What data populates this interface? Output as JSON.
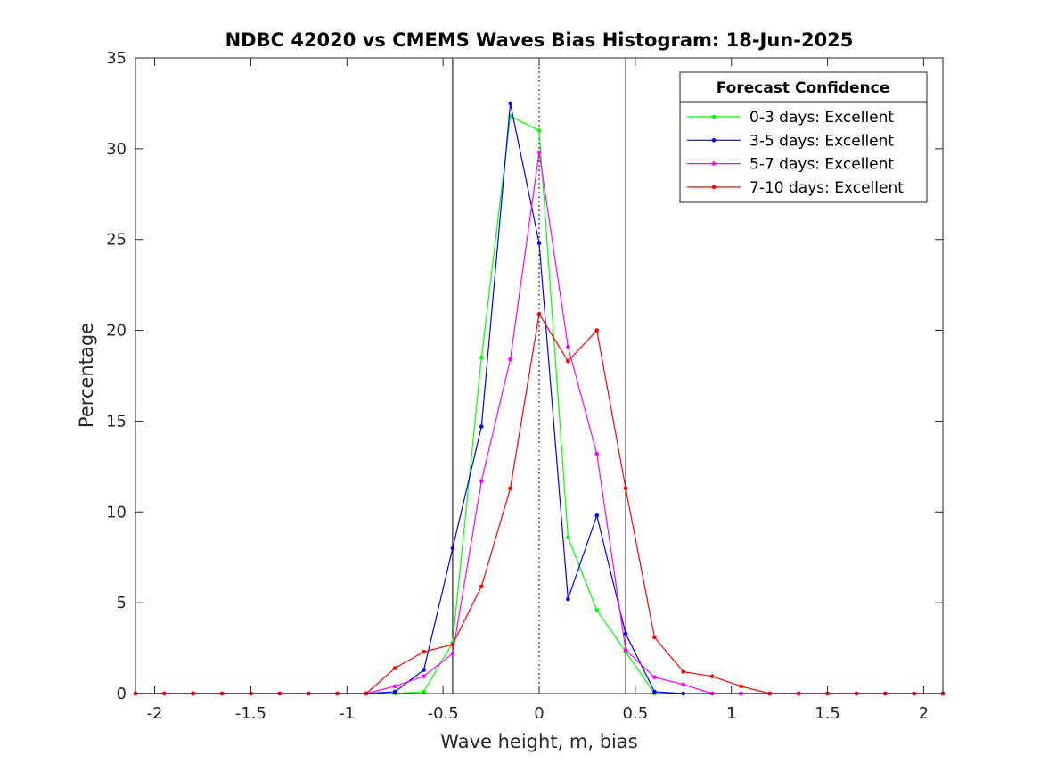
{
  "chart_data": {
    "type": "line",
    "title": "NDBC 42020 vs CMEMS Waves Bias Histogram: 18-Jun-2025",
    "xlabel": "Wave height, m, bias",
    "ylabel": "Percentage",
    "xlim": [
      -2.1,
      2.1
    ],
    "ylim": [
      0,
      35
    ],
    "xticks": [
      -2,
      -1.5,
      -1,
      -0.5,
      0,
      0.5,
      1,
      1.5,
      2
    ],
    "xtick_labels": [
      "-2",
      "-1.5",
      "-1",
      "-0.5",
      "0",
      "0.5",
      "1",
      "1.5",
      "2"
    ],
    "yticks": [
      0,
      5,
      10,
      15,
      20,
      25,
      30,
      35
    ],
    "ytick_labels": [
      "0",
      "5",
      "10",
      "15",
      "20",
      "25",
      "30",
      "35"
    ],
    "grid": false,
    "vertical_lines": [
      {
        "x": -0.45,
        "style": "solid",
        "color": "#000000"
      },
      {
        "x": 0,
        "style": "dotted",
        "color": "#000000"
      },
      {
        "x": 0.45,
        "style": "solid",
        "color": "#000000"
      }
    ],
    "x": [
      -2.1,
      -1.95,
      -1.8,
      -1.65,
      -1.5,
      -1.35,
      -1.2,
      -1.05,
      -0.9,
      -0.75,
      -0.6,
      -0.45,
      -0.3,
      -0.15,
      0,
      0.15,
      0.3,
      0.45,
      0.6,
      0.75,
      0.9,
      1.05,
      1.2,
      1.35,
      1.5,
      1.65,
      1.8,
      1.95,
      2.1
    ],
    "series": [
      {
        "name": "0-3 days: Excellent",
        "color": "#00ff00",
        "values": [
          0,
          0,
          0,
          0,
          0,
          0,
          0,
          0,
          0,
          0,
          0.1,
          2.8,
          18.5,
          31.8,
          31.0,
          8.6,
          4.6,
          2.3,
          0,
          0,
          0,
          0,
          0,
          0,
          0,
          0,
          0,
          0,
          0
        ]
      },
      {
        "name": "3-5 days: Excellent",
        "color": "#0000ff",
        "values": [
          0,
          0,
          0,
          0,
          0,
          0,
          0,
          0,
          0,
          0.1,
          1.3,
          8.0,
          14.7,
          32.5,
          24.8,
          5.2,
          9.8,
          3.3,
          0.1,
          0,
          0,
          0,
          0,
          0,
          0,
          0,
          0,
          0,
          0
        ]
      },
      {
        "name": "5-7 days: Excellent",
        "color": "#ff00ff",
        "values": [
          0,
          0,
          0,
          0,
          0,
          0,
          0,
          0,
          0,
          0.4,
          0.95,
          2.2,
          11.7,
          18.4,
          29.8,
          19.1,
          13.2,
          2.4,
          0.9,
          0.5,
          0,
          0,
          0,
          0,
          0,
          0,
          0,
          0,
          0
        ]
      },
      {
        "name": "7-10 days: Excellent",
        "color": "#ff0000",
        "values": [
          0,
          0,
          0,
          0,
          0,
          0,
          0,
          0,
          0,
          1.4,
          2.3,
          2.7,
          5.9,
          11.3,
          20.9,
          18.3,
          20.0,
          11.3,
          3.1,
          1.2,
          0.95,
          0.4,
          0,
          0,
          0,
          0,
          0,
          0,
          0
        ]
      }
    ],
    "legend": {
      "title": "Forecast Confidence",
      "placement": "top-right"
    }
  }
}
